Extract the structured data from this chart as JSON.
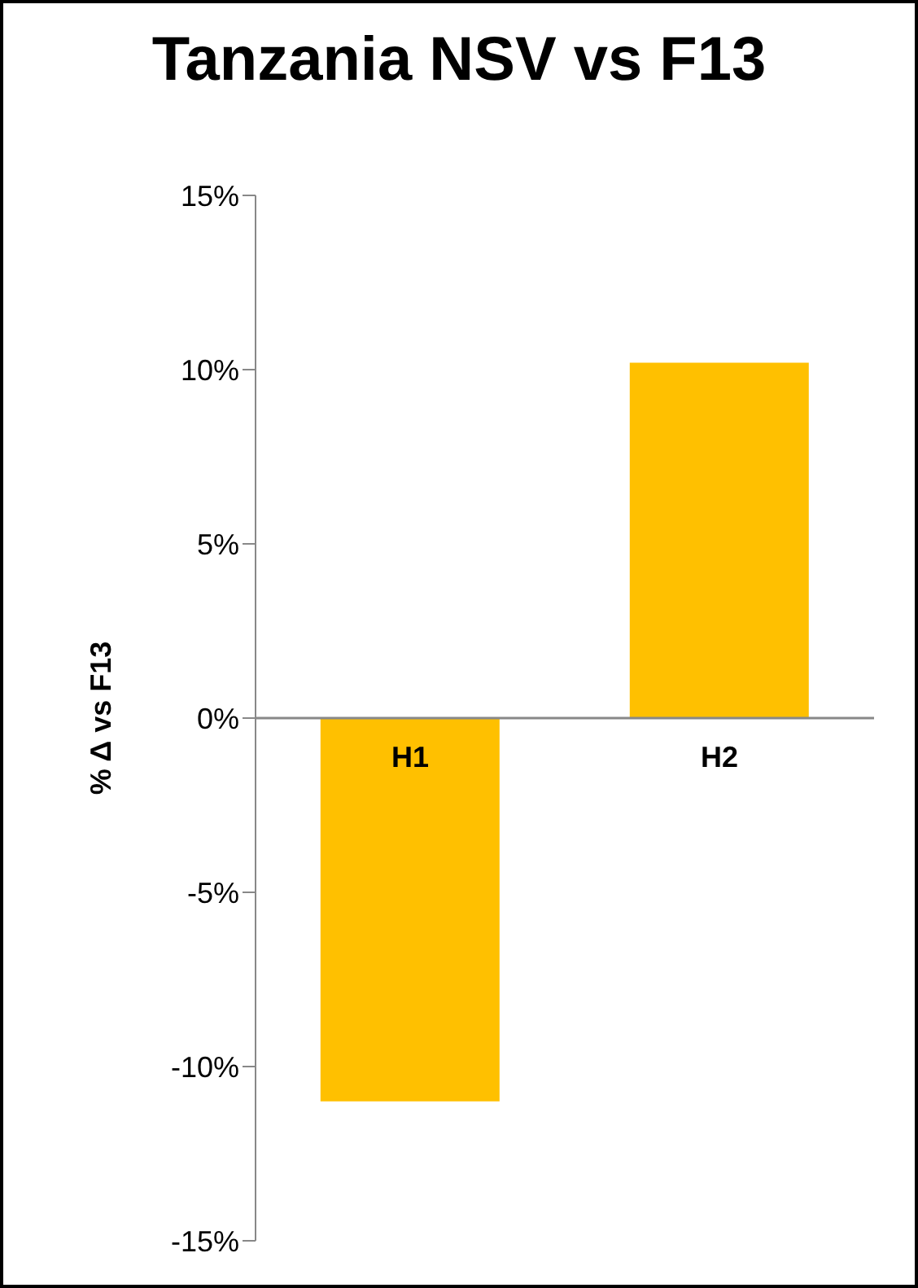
{
  "chart_data": {
    "type": "bar",
    "title": "Tanzania NSV vs F13",
    "ylabel": "% Δ vs F13",
    "categories": [
      "H1",
      "H2"
    ],
    "values": [
      -11,
      10.2
    ],
    "color": "#ffc000",
    "ylim": [
      -15,
      15
    ],
    "yticks": [
      {
        "value": -15,
        "label": "-15%"
      },
      {
        "value": -10,
        "label": "-10%"
      },
      {
        "value": -5,
        "label": "-5%"
      },
      {
        "value": 0,
        "label": "0%"
      },
      {
        "value": 5,
        "label": "5%"
      },
      {
        "value": 10,
        "label": "10%"
      },
      {
        "value": 15,
        "label": "15%"
      }
    ],
    "grid": false,
    "legend": false
  }
}
